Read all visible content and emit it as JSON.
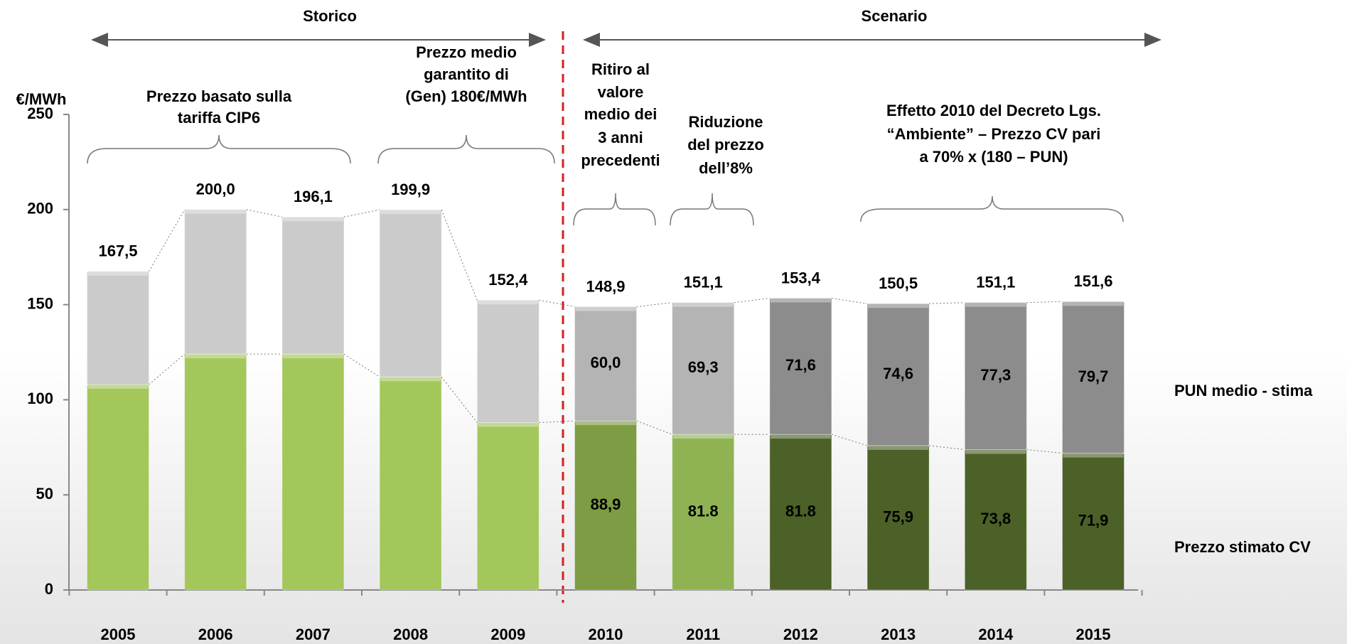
{
  "chart_data": {
    "type": "stacked_bar",
    "section_labels": [
      "Storico",
      "Scenario"
    ],
    "ylabel": "€/MWh",
    "categories": [
      "2005",
      "2006",
      "2007",
      "2008",
      "2009",
      "2010",
      "2011",
      "2012",
      "2013",
      "2014",
      "2015"
    ],
    "series": [
      {
        "name": "Prezzo stimato CV",
        "values": [
          108,
          124,
          124,
          112,
          88,
          88.9,
          81.8,
          81.8,
          75.9,
          73.8,
          71.9
        ],
        "value_labels": [
          null,
          null,
          null,
          null,
          null,
          "88,9",
          "81.8",
          "81.8",
          "75,9",
          "73,8",
          "71,9"
        ],
        "colors": [
          "#a3c75b",
          "#a3c75b",
          "#a3c75b",
          "#a3c75b",
          "#a3c75b",
          "#7d9c43",
          "#8fb352",
          "#4c6127",
          "#4c6127",
          "#4c6127",
          "#4c6127"
        ]
      },
      {
        "name": "PUN medio - stima",
        "values": [
          59.5,
          76,
          72.1,
          87.9,
          64.4,
          60.0,
          69.3,
          71.6,
          74.6,
          77.3,
          79.7
        ],
        "value_labels": [
          null,
          null,
          null,
          null,
          null,
          "60,0",
          "69,3",
          "71,6",
          "74,6",
          "77,3",
          "79,7"
        ],
        "colors": [
          "#cbcbcb",
          "#cbcbcb",
          "#cbcbcb",
          "#cbcbcb",
          "#cbcbcb",
          "#b4b4b4",
          "#b4b4b4",
          "#8c8c8c",
          "#8c8c8c",
          "#8c8c8c",
          "#8c8c8c"
        ]
      }
    ],
    "totals": [
      167.5,
      200.0,
      196.1,
      199.9,
      152.4,
      148.9,
      151.1,
      153.4,
      150.5,
      151.1,
      151.6
    ],
    "total_labels": [
      "167,5",
      "200,0",
      "196,1",
      "199,9",
      "152,4",
      "148,9",
      "151,1",
      "153,4",
      "150,5",
      "151,1",
      "151,6"
    ],
    "ylim": [
      0,
      250
    ],
    "yticks": [
      0,
      50,
      100,
      150,
      200,
      250
    ],
    "annotations": [
      {
        "lines": [
          "Prezzo basato sulla",
          "tariffa CIP6"
        ]
      },
      {
        "lines": [
          "Prezzo medio",
          "garantito di",
          "(Gen) 180€/MWh"
        ]
      },
      {
        "lines": [
          "Ritiro al",
          "valore",
          "medio dei",
          "3 anni",
          "precedenti"
        ]
      },
      {
        "lines": [
          "Riduzione",
          "del prezzo",
          "dell’8%"
        ]
      },
      {
        "lines": [
          "Effetto 2010 del Decreto Lgs.",
          "“Ambiente” – Prezzo CV pari",
          "a 70% x (180 – PUN)"
        ]
      }
    ]
  }
}
